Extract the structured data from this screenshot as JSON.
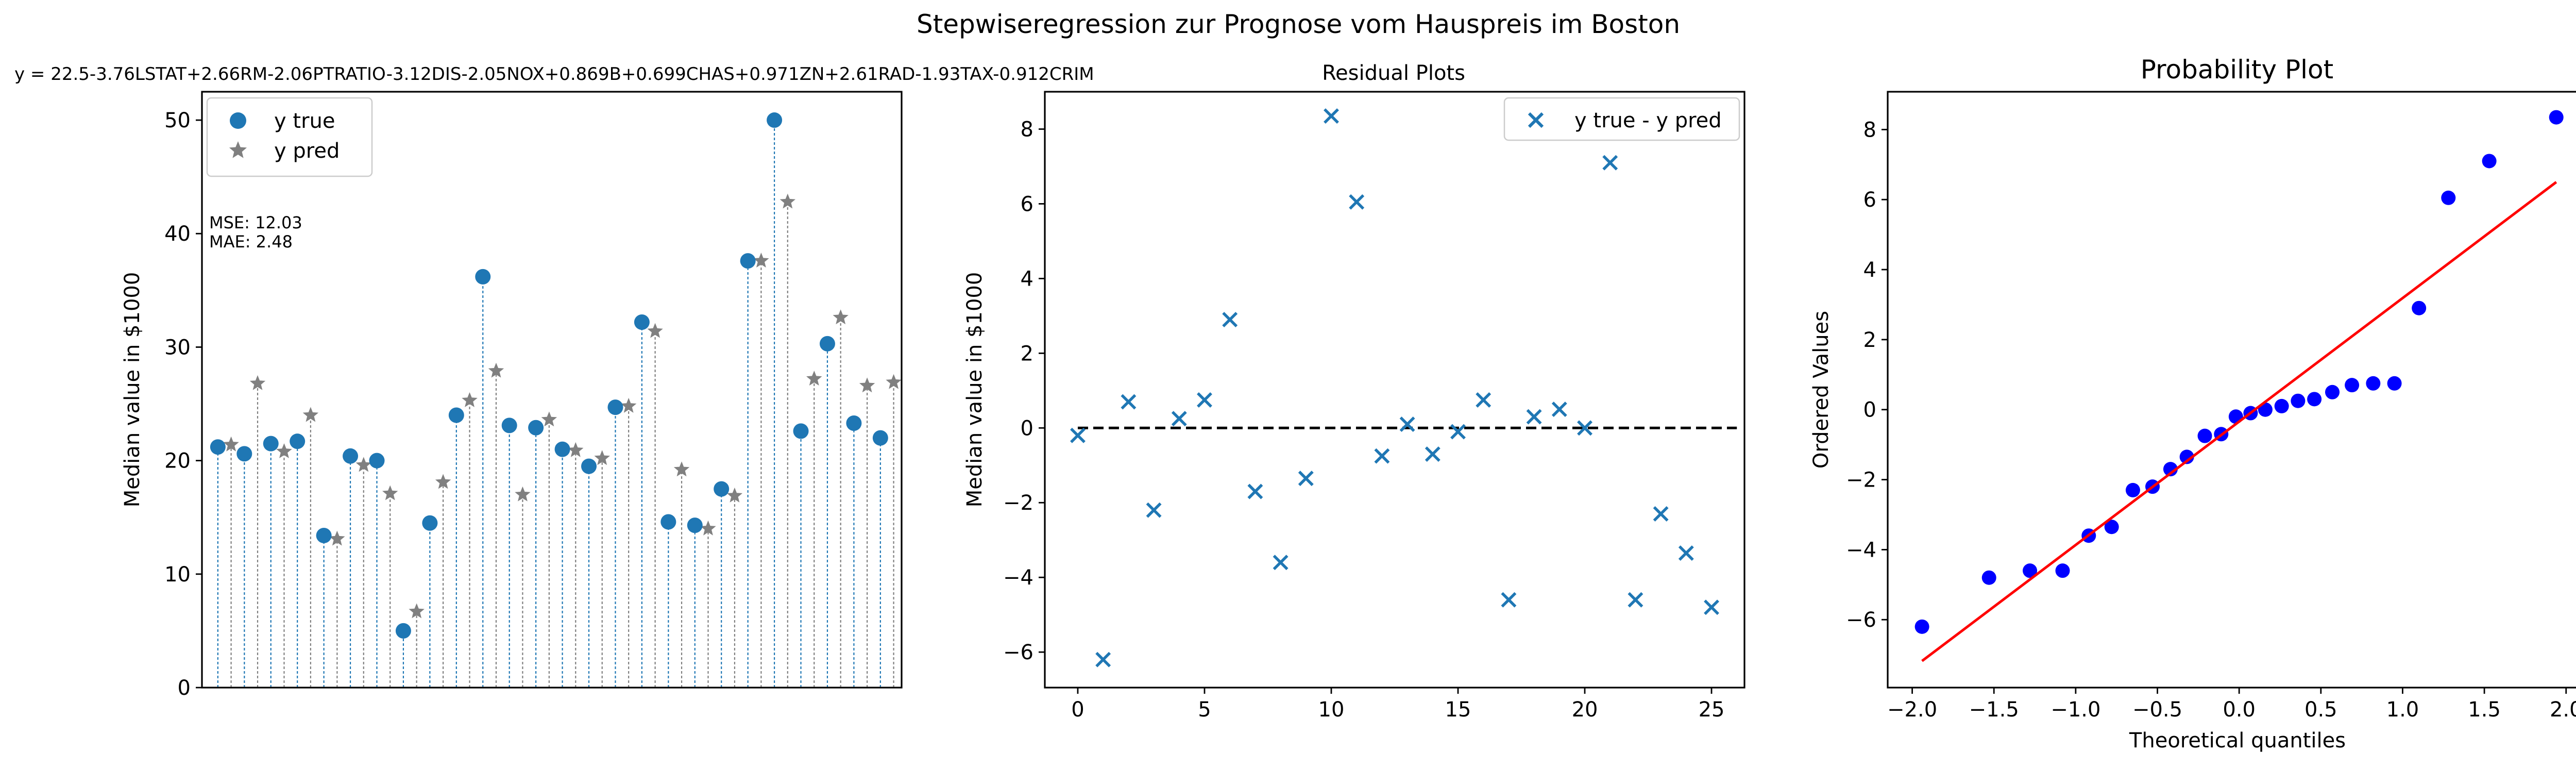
{
  "suptitle": "Stepwiseregression zur Prognose vom Hauspreis im Boston",
  "chart_data": [
    {
      "type": "stem",
      "title": "y = 22.5-3.76LSTAT+2.66RM-2.06PTRATIO-3.12DIS-2.05NOX+0.869B+0.699CHAS+0.971ZN+2.61RAD-1.93TAX-0.912CRIM",
      "xlabel": "",
      "ylabel": "Median value in $1000",
      "xlim": [
        -0.6,
        25.8
      ],
      "ylim": [
        0,
        52.5
      ],
      "yticks": [
        0,
        10,
        20,
        30,
        40,
        50
      ],
      "legend": {
        "position": "top-left",
        "entries": [
          "y true",
          "y pred"
        ]
      },
      "annotation": [
        "MSE: 12.03",
        "MAE: 2.48"
      ],
      "colors": {
        "true": "#1f77b4",
        "pred": "#808080"
      },
      "series": [
        {
          "name": "y true",
          "marker": "circle",
          "x": [
            0,
            1,
            2,
            3,
            4,
            5,
            6,
            7,
            8,
            9,
            10,
            11,
            12,
            13,
            14,
            15,
            16,
            17,
            18,
            19,
            20,
            21,
            22,
            23,
            24,
            25
          ],
          "values": [
            21.2,
            20.6,
            21.5,
            21.7,
            13.4,
            20.4,
            20.0,
            5.0,
            14.5,
            24.0,
            36.2,
            23.1,
            22.9,
            21.0,
            19.5,
            24.7,
            32.2,
            14.6,
            14.3,
            17.5,
            37.6,
            50.0,
            22.6,
            30.3,
            23.3,
            22.0
          ]
        },
        {
          "name": "y pred",
          "marker": "star",
          "x": [
            0.5,
            1.5,
            2.5,
            3.5,
            4.5,
            5.5,
            6.5,
            7.5,
            8.5,
            9.5,
            10.5,
            11.5,
            12.5,
            13.5,
            14.5,
            15.5,
            16.5,
            17.5,
            18.5,
            19.5,
            20.5,
            21.5,
            22.5,
            23.5,
            24.5,
            25.5
          ],
          "values": [
            21.4,
            26.8,
            20.8,
            24.0,
            13.1,
            19.6,
            17.1,
            6.7,
            18.1,
            25.3,
            27.9,
            17.0,
            23.6,
            20.9,
            20.2,
            24.8,
            31.4,
            19.2,
            14.0,
            16.9,
            37.6,
            42.8,
            27.2,
            32.6,
            26.6,
            26.9
          ]
        }
      ]
    },
    {
      "type": "scatter",
      "title": "Residual Plots",
      "xlabel": "",
      "ylabel": "Median value in $1000",
      "xlim": [
        -1.3,
        26.3
      ],
      "ylim": [
        -6.95,
        9.0
      ],
      "xticks": [
        0,
        5,
        10,
        15,
        20,
        25
      ],
      "yticks": [
        -6,
        -4,
        -2,
        0,
        2,
        4,
        6,
        8
      ],
      "legend": {
        "position": "top-right",
        "entries": [
          "y true - y pred"
        ]
      },
      "zero_line": {
        "y": 0,
        "from": 0,
        "to": 26,
        "style": "dashed",
        "color": "#000000"
      },
      "series": [
        {
          "name": "y true - y pred",
          "marker": "x",
          "color": "#1f77b4",
          "x": [
            0,
            1,
            2,
            3,
            4,
            5,
            6,
            7,
            8,
            9,
            10,
            11,
            12,
            13,
            14,
            15,
            16,
            17,
            18,
            19,
            20,
            21,
            22,
            23,
            24,
            25
          ],
          "values": [
            -0.2,
            -6.2,
            0.7,
            -2.2,
            0.25,
            0.75,
            2.9,
            -1.7,
            -3.6,
            -1.35,
            8.35,
            6.05,
            -0.75,
            0.1,
            -0.7,
            -0.1,
            0.75,
            -4.6,
            0.3,
            0.5,
            0.0,
            7.1,
            -4.6,
            -2.3,
            -3.35,
            -4.8
          ]
        }
      ]
    },
    {
      "type": "scatter",
      "title": "Probability Plot",
      "xlabel": "Theoretical quantiles",
      "ylabel": "Ordered Values",
      "xlim": [
        -2.15,
        2.13
      ],
      "ylim": [
        -7.94,
        9.08
      ],
      "xticks": [
        -2.0,
        -1.5,
        -1.0,
        -0.5,
        0.0,
        0.5,
        1.0,
        1.5,
        2.0
      ],
      "xticklabels": [
        "−2.0",
        "−1.5",
        "−1.0",
        "−0.5",
        "0.0",
        "0.5",
        "1.0",
        "1.5",
        "2.0"
      ],
      "yticks": [
        -6,
        -4,
        -2,
        0,
        2,
        4,
        6,
        8
      ],
      "fit_line": {
        "x": [
          -1.94,
          1.94
        ],
        "y": [
          -7.18,
          6.5
        ],
        "color": "#ff0000"
      },
      "series": [
        {
          "marker": "circle",
          "color": "#0000ff",
          "x": [
            -1.94,
            -1.53,
            -1.28,
            -1.08,
            -0.92,
            -0.78,
            -0.65,
            -0.53,
            -0.42,
            -0.32,
            -0.21,
            -0.11,
            -0.02,
            0.07,
            0.16,
            0.26,
            0.36,
            0.46,
            0.57,
            0.69,
            0.82,
            0.95,
            1.1,
            1.28,
            1.53,
            1.94
          ],
          "values": [
            -6.2,
            -4.8,
            -4.6,
            -4.6,
            -3.6,
            -3.35,
            -2.3,
            -2.2,
            -1.7,
            -1.35,
            -0.75,
            -0.7,
            -0.2,
            -0.1,
            0.0,
            0.1,
            0.25,
            0.3,
            0.5,
            0.7,
            0.75,
            0.75,
            2.9,
            6.05,
            7.1,
            8.35
          ]
        }
      ]
    }
  ],
  "ticklabels": {
    "p1y": [
      "0",
      "10",
      "20",
      "30",
      "40",
      "50"
    ],
    "p2x": [
      "0",
      "5",
      "10",
      "15",
      "20",
      "25"
    ],
    "p2y": [
      "−6",
      "−4",
      "−2",
      "0",
      "2",
      "4",
      "6",
      "8"
    ],
    "p3y": [
      "−6",
      "−4",
      "−2",
      "0",
      "2",
      "4",
      "6",
      "8"
    ]
  }
}
